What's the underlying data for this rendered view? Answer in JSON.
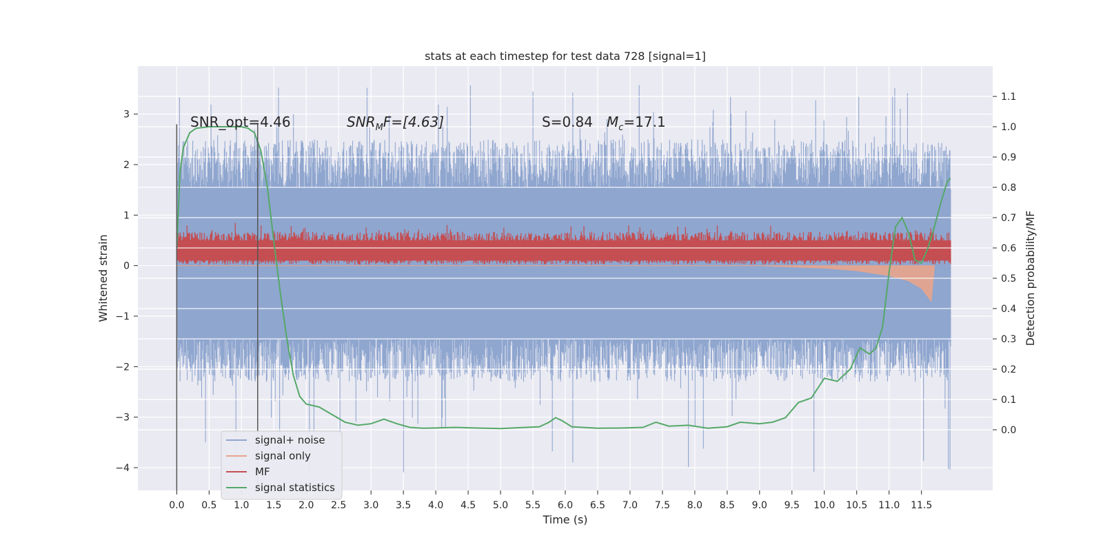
{
  "chart_data": {
    "type": "line",
    "title": "stats at each timestep for test data 728 [signal=1]",
    "xlabel": "Time (s)",
    "ylabel_left": "Whitened strain",
    "ylabel_right": "Detection probability/MF",
    "xlim": [
      -0.6,
      12.6
    ],
    "ylim_left": [
      -4.45,
      3.95
    ],
    "ylim_right": [
      -0.2,
      1.2
    ],
    "grid": true,
    "legend_position": "lower-left",
    "x_ticks": [
      "0.0",
      "0.5",
      "1.0",
      "1.5",
      "2.0",
      "2.5",
      "3.0",
      "3.5",
      "4.0",
      "4.5",
      "5.0",
      "5.5",
      "6.0",
      "6.5",
      "7.0",
      "7.5",
      "8.0",
      "8.5",
      "9.0",
      "9.5",
      "10.0",
      "10.5",
      "11.0",
      "11.5"
    ],
    "y_ticks_left": [
      "3",
      "2",
      "1",
      "0",
      "−1",
      "−2",
      "−3",
      "−4"
    ],
    "y_ticks_right": [
      "1.1",
      "1.0",
      "0.9",
      "0.8",
      "0.7",
      "0.6",
      "0.5",
      "0.4",
      "0.3",
      "0.2",
      "0.1",
      "0.0"
    ],
    "annotations": {
      "snr_opt": "SNR_opt=4.46",
      "snr_mf": "SNR",
      "snr_mf_sub": "M",
      "snr_mf_tail": "F=[4.63]",
      "s_value": "S=0.84",
      "mc_main": "M",
      "mc_sub": "c",
      "mc_value": "=17.1"
    },
    "vertical_markers": [
      0.0,
      1.25
    ],
    "series": [
      {
        "name": "signal+ noise",
        "color": "#8fa6cf",
        "envelope": {
          "t_start": 0.0,
          "t_end": 11.95,
          "typical_min": -2.3,
          "typical_max": 2.5,
          "peak_max": 3.6,
          "peak_min": -4.1
        }
      },
      {
        "name": "signal only",
        "color": "#e8a58b",
        "points": [
          [
            0.0,
            0.0
          ],
          [
            9.0,
            0.0
          ],
          [
            10.0,
            -0.05
          ],
          [
            10.5,
            -0.1
          ],
          [
            11.0,
            -0.2
          ],
          [
            11.3,
            -0.3
          ],
          [
            11.5,
            -0.45
          ],
          [
            11.65,
            -0.7
          ],
          [
            11.7,
            0.0
          ]
        ]
      },
      {
        "name": "MF",
        "color": "#c44e52",
        "band": {
          "t_start": 0.0,
          "t_end": 11.95,
          "min": 0.02,
          "max": 0.85
        }
      },
      {
        "name": "signal statistics",
        "color": "#55a868",
        "points": [
          [
            0.0,
            0.6
          ],
          [
            0.05,
            0.85
          ],
          [
            0.1,
            0.93
          ],
          [
            0.2,
            0.98
          ],
          [
            0.3,
            0.995
          ],
          [
            0.5,
            1.0
          ],
          [
            0.8,
            1.0
          ],
          [
            1.0,
            1.0
          ],
          [
            1.1,
            0.995
          ],
          [
            1.2,
            0.98
          ],
          [
            1.3,
            0.92
          ],
          [
            1.4,
            0.8
          ],
          [
            1.5,
            0.62
          ],
          [
            1.6,
            0.45
          ],
          [
            1.7,
            0.3
          ],
          [
            1.8,
            0.18
          ],
          [
            1.9,
            0.11
          ],
          [
            2.0,
            0.085
          ],
          [
            2.2,
            0.075
          ],
          [
            2.4,
            0.05
          ],
          [
            2.6,
            0.025
          ],
          [
            2.8,
            0.015
          ],
          [
            3.0,
            0.02
          ],
          [
            3.2,
            0.035
          ],
          [
            3.4,
            0.02
          ],
          [
            3.6,
            0.008
          ],
          [
            3.8,
            0.005
          ],
          [
            4.0,
            0.006
          ],
          [
            4.3,
            0.008
          ],
          [
            4.6,
            0.006
          ],
          [
            5.0,
            0.004
          ],
          [
            5.3,
            0.007
          ],
          [
            5.6,
            0.01
          ],
          [
            5.75,
            0.025
          ],
          [
            5.85,
            0.04
          ],
          [
            5.95,
            0.03
          ],
          [
            6.1,
            0.01
          ],
          [
            6.5,
            0.005
          ],
          [
            6.9,
            0.006
          ],
          [
            7.2,
            0.008
          ],
          [
            7.4,
            0.025
          ],
          [
            7.6,
            0.012
          ],
          [
            7.9,
            0.015
          ],
          [
            8.2,
            0.005
          ],
          [
            8.5,
            0.01
          ],
          [
            8.7,
            0.025
          ],
          [
            9.0,
            0.02
          ],
          [
            9.2,
            0.025
          ],
          [
            9.4,
            0.04
          ],
          [
            9.6,
            0.09
          ],
          [
            9.8,
            0.105
          ],
          [
            10.0,
            0.17
          ],
          [
            10.2,
            0.16
          ],
          [
            10.4,
            0.2
          ],
          [
            10.55,
            0.27
          ],
          [
            10.7,
            0.25
          ],
          [
            10.8,
            0.27
          ],
          [
            10.9,
            0.34
          ],
          [
            11.0,
            0.52
          ],
          [
            11.1,
            0.67
          ],
          [
            11.2,
            0.7
          ],
          [
            11.3,
            0.65
          ],
          [
            11.4,
            0.56
          ],
          [
            11.5,
            0.55
          ],
          [
            11.6,
            0.6
          ],
          [
            11.7,
            0.67
          ],
          [
            11.8,
            0.75
          ],
          [
            11.9,
            0.82
          ],
          [
            11.95,
            0.83
          ]
        ]
      }
    ]
  }
}
